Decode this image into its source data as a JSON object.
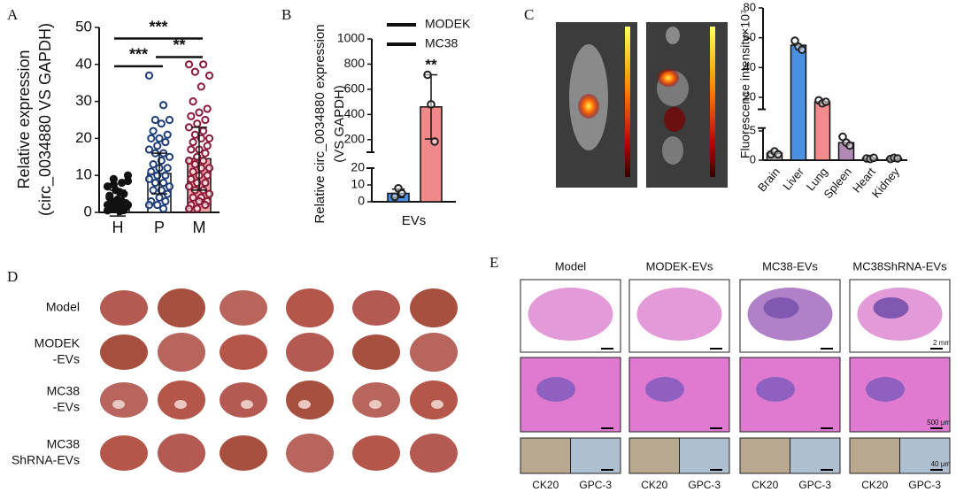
{
  "chart_data": [
    {
      "panel": "A",
      "type": "dot_bar",
      "categories": [
        "H",
        "P",
        "M"
      ],
      "values": [
        2.5,
        10.5,
        14.5
      ],
      "errors": [
        3.5,
        5.5,
        8.5
      ],
      "points": [
        [
          0.5,
          1,
          1.5,
          2,
          0.8,
          3,
          2.5,
          1.2,
          4,
          5,
          6,
          7,
          8,
          9,
          10,
          0.3,
          1.8,
          2.2,
          3.5,
          4.5,
          0.6,
          1,
          2,
          3,
          7.5,
          8.5,
          5.5,
          0.9,
          1.4,
          2.8
        ],
        [
          37,
          29,
          25,
          25,
          24,
          22,
          21,
          20,
          20,
          19,
          18,
          17,
          16,
          16,
          15,
          14,
          13,
          12,
          12,
          11,
          10,
          10,
          9,
          8,
          8,
          7,
          6,
          6,
          5,
          4,
          3,
          3,
          2,
          2,
          1
        ],
        [
          40,
          40,
          38,
          37,
          34,
          30,
          28,
          27,
          26,
          25,
          24,
          23,
          22,
          21,
          20,
          20,
          19,
          18,
          17,
          17,
          16,
          15,
          14,
          14,
          13,
          12,
          12,
          11,
          10,
          10,
          9,
          8,
          8,
          7,
          6,
          6,
          5,
          4,
          4,
          3,
          3,
          2,
          2,
          1,
          1
        ]
      ],
      "colors": [
        "#ffffff",
        "#ffffff",
        "#f4a3a3"
      ],
      "point_colors": [
        "#111111",
        "#1f3d7a",
        "#8b1a3a"
      ],
      "ylabel": [
        "Relative expression",
        "(circ_0034880 VS GAPDH)"
      ],
      "ylim": [
        0,
        50
      ],
      "yticks": [
        0,
        10,
        20,
        30,
        40,
        50
      ],
      "significance": [
        {
          "label": "***",
          "from": 0,
          "to": 2,
          "y": 47
        },
        {
          "label": "***",
          "from": 0,
          "to": 1,
          "y": 39.5
        },
        {
          "label": "**",
          "from": 1,
          "to": 2,
          "y": 42
        }
      ]
    },
    {
      "panel": "B",
      "type": "broken_bar",
      "categories": [
        "EVs"
      ],
      "series": [
        {
          "name": "MODEK",
          "color": "#4a8fe0",
          "values": [
            5
          ],
          "errors": [
            2.5
          ],
          "points": [
            [
              3,
              8,
              5
            ]
          ]
        },
        {
          "name": "MC38",
          "color": "#f08a8a",
          "values": [
            460
          ],
          "errors": [
            255
          ],
          "points": [
            [
              715,
              480,
              185
            ]
          ]
        }
      ],
      "ylabel": [
        "Relative circ_0034880 expression",
        "(VS GAPDH)"
      ],
      "ylim": [
        0,
        1000
      ],
      "ybreak": [
        20,
        100
      ],
      "yticks": [
        0,
        10,
        20,
        200,
        400,
        600,
        800,
        1000
      ],
      "significance": [
        {
          "label": "**",
          "series": 1,
          "y": 790
        }
      ]
    },
    {
      "panel": "C",
      "type": "broken_bar",
      "categories": [
        "Brain",
        "Liver",
        "Lung",
        "Spleen",
        "Heart",
        "Kidney"
      ],
      "values": [
        1.2,
        55,
        17,
        3,
        0.3,
        0.3
      ],
      "colors": [
        "#b0b0b0",
        "#4a8fe0",
        "#f28b8b",
        "#b08ab5",
        "#b0b0b0",
        "#b0b0b0"
      ],
      "points": [
        [
          1,
          1.5,
          1
        ],
        [
          58,
          54,
          52
        ],
        [
          18,
          16,
          17
        ],
        [
          4,
          3,
          2.5
        ],
        [
          0.3,
          0.2,
          0.4
        ],
        [
          0.2,
          0.4,
          0.3
        ]
      ],
      "ylabel": [
        "Fluorescence intensity×10⁷"
      ],
      "ylim": [
        0,
        80
      ],
      "ybreak": [
        5.5,
        12
      ],
      "yticks": [
        0,
        5,
        20,
        40,
        60,
        80
      ]
    }
  ],
  "panel_d": {
    "label": "D",
    "rows": [
      [
        "Model"
      ],
      [
        "MODEK",
        "-EVs"
      ],
      [
        "MC38",
        "-EVs"
      ],
      [
        "MC38",
        "ShRNA-EVs"
      ]
    ]
  },
  "panel_e": {
    "label": "E",
    "columns": [
      "Model",
      "MODEK-EVs",
      "MC38-EVs",
      "MC38ShRNA-EVs"
    ],
    "stain_labels": [
      "CK20",
      "GPC-3"
    ],
    "scale_bars": [
      "2 mm",
      "500 μm",
      "40 μm"
    ]
  }
}
